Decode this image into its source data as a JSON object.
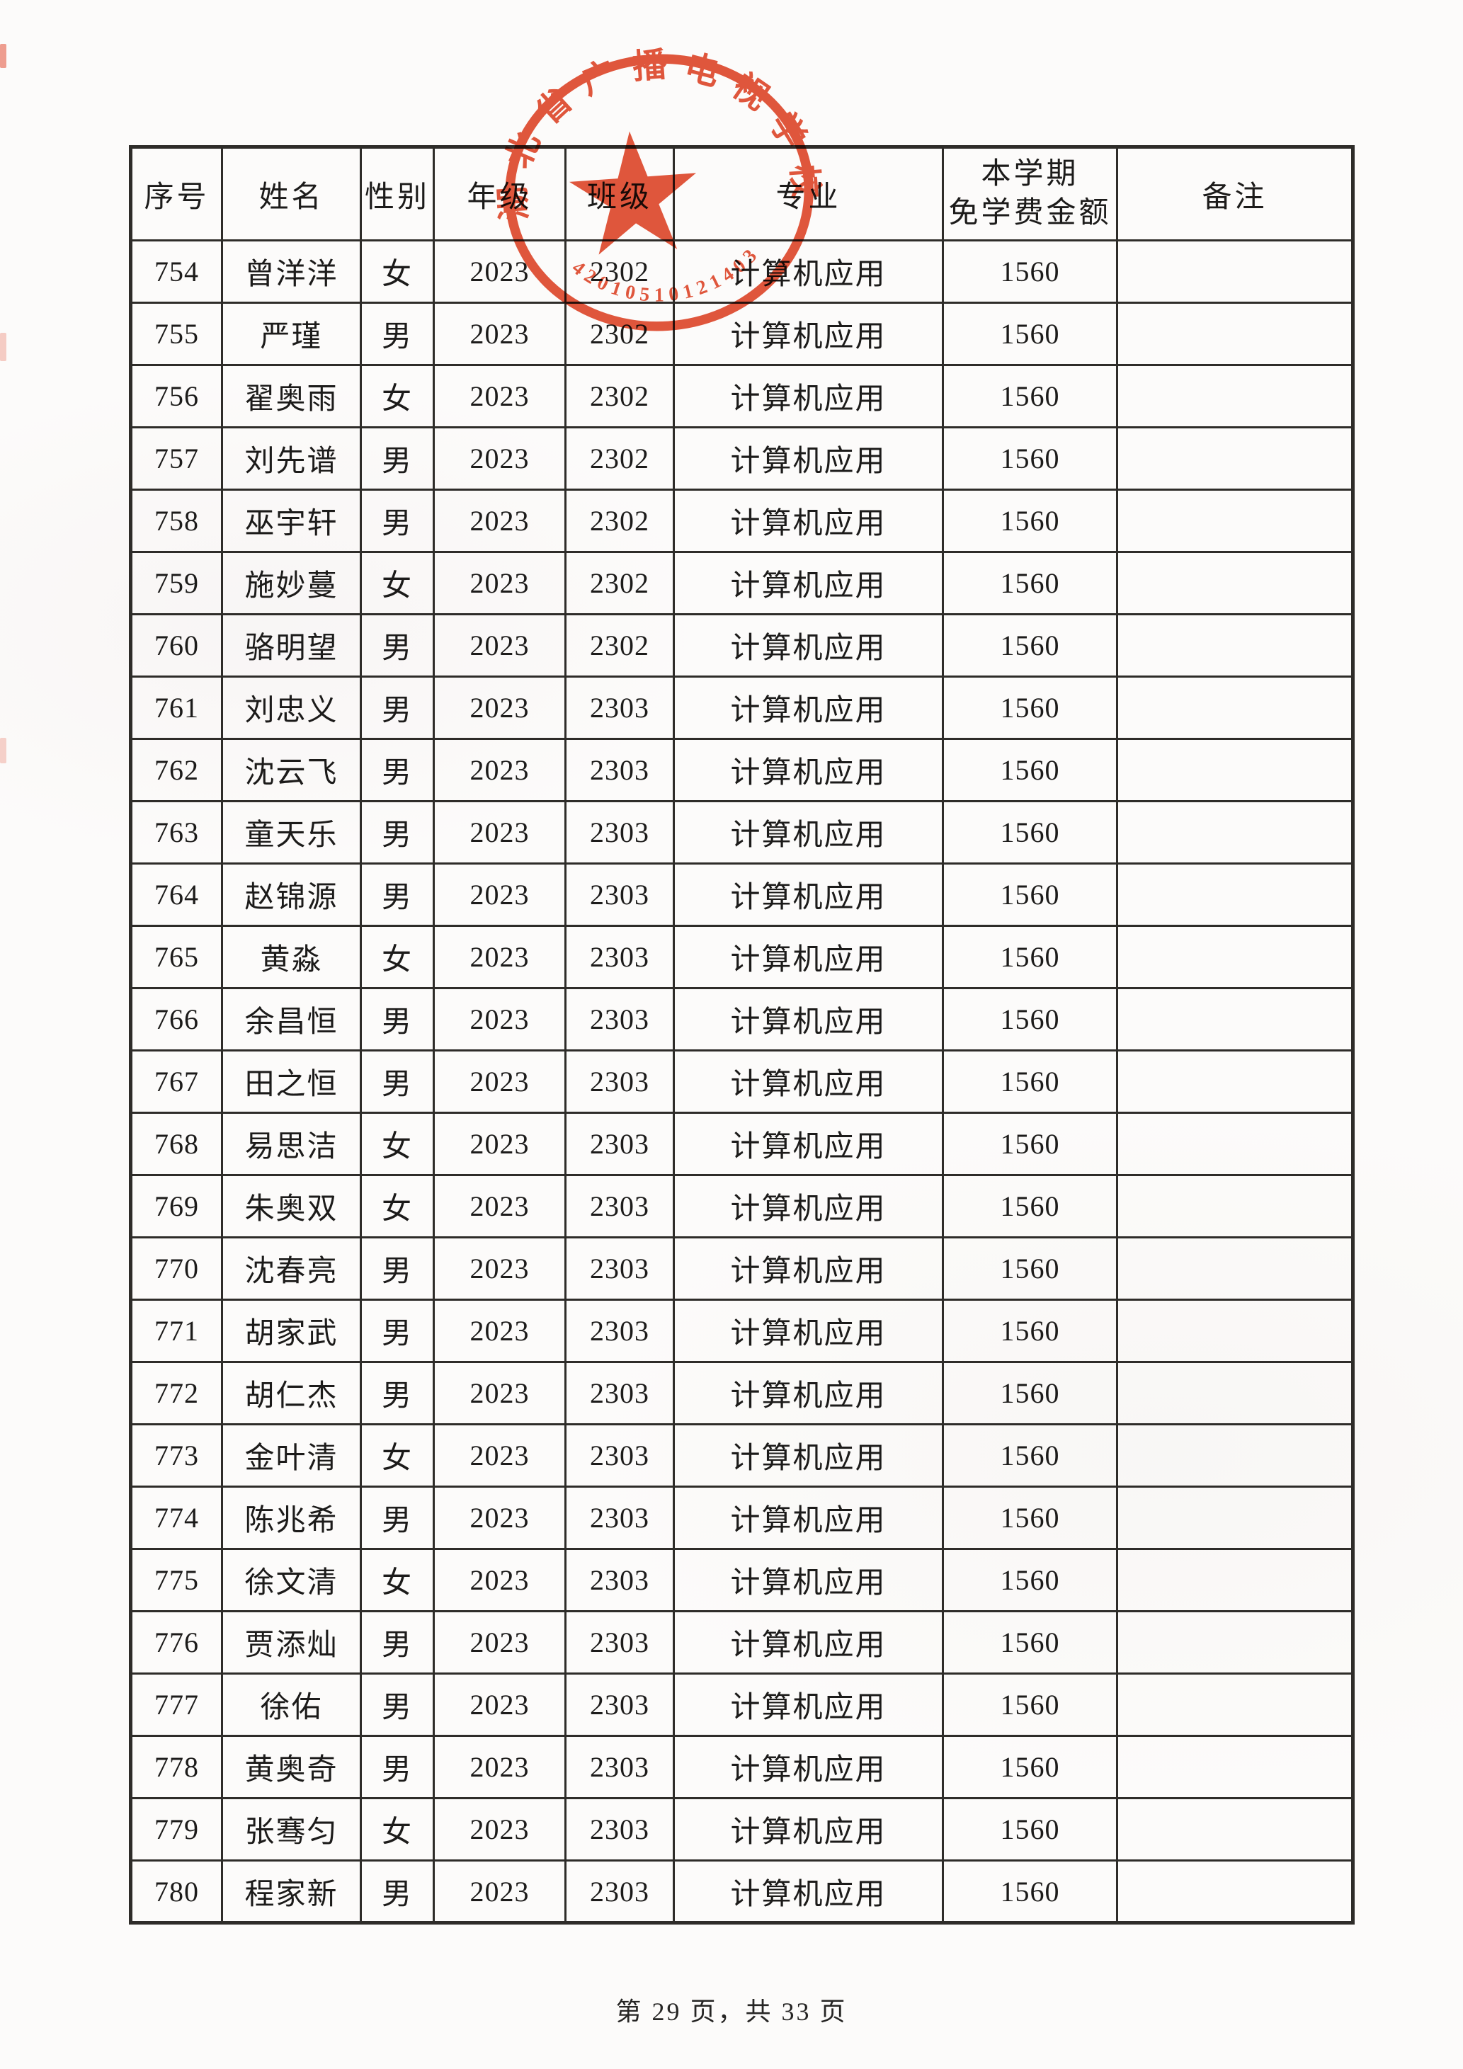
{
  "page": {
    "footer": "第 29 页，共 33 页"
  },
  "stamp": {
    "org": "湖北省广播电视学校",
    "code": "42010510121403",
    "color": "#e04a2e"
  },
  "table": {
    "headers": {
      "serial": "序号",
      "name": "姓名",
      "gender": "性别",
      "grade": "年级",
      "class": "班级",
      "major": "专业",
      "amount_line1": "本学期",
      "amount_line2": "免学费金额",
      "remark": "备注"
    },
    "rows": [
      {
        "serial": "754",
        "name": "曾洋洋",
        "gender": "女",
        "grade": "2023",
        "class": "2302",
        "major": "计算机应用",
        "amount": "1560",
        "remark": ""
      },
      {
        "serial": "755",
        "name": "严瑾",
        "gender": "男",
        "grade": "2023",
        "class": "2302",
        "major": "计算机应用",
        "amount": "1560",
        "remark": ""
      },
      {
        "serial": "756",
        "name": "翟奥雨",
        "gender": "女",
        "grade": "2023",
        "class": "2302",
        "major": "计算机应用",
        "amount": "1560",
        "remark": ""
      },
      {
        "serial": "757",
        "name": "刘先谱",
        "gender": "男",
        "grade": "2023",
        "class": "2302",
        "major": "计算机应用",
        "amount": "1560",
        "remark": ""
      },
      {
        "serial": "758",
        "name": "巫宇轩",
        "gender": "男",
        "grade": "2023",
        "class": "2302",
        "major": "计算机应用",
        "amount": "1560",
        "remark": ""
      },
      {
        "serial": "759",
        "name": "施妙蔓",
        "gender": "女",
        "grade": "2023",
        "class": "2302",
        "major": "计算机应用",
        "amount": "1560",
        "remark": ""
      },
      {
        "serial": "760",
        "name": "骆明望",
        "gender": "男",
        "grade": "2023",
        "class": "2302",
        "major": "计算机应用",
        "amount": "1560",
        "remark": ""
      },
      {
        "serial": "761",
        "name": "刘忠义",
        "gender": "男",
        "grade": "2023",
        "class": "2303",
        "major": "计算机应用",
        "amount": "1560",
        "remark": ""
      },
      {
        "serial": "762",
        "name": "沈云飞",
        "gender": "男",
        "grade": "2023",
        "class": "2303",
        "major": "计算机应用",
        "amount": "1560",
        "remark": ""
      },
      {
        "serial": "763",
        "name": "童天乐",
        "gender": "男",
        "grade": "2023",
        "class": "2303",
        "major": "计算机应用",
        "amount": "1560",
        "remark": ""
      },
      {
        "serial": "764",
        "name": "赵锦源",
        "gender": "男",
        "grade": "2023",
        "class": "2303",
        "major": "计算机应用",
        "amount": "1560",
        "remark": ""
      },
      {
        "serial": "765",
        "name": "黄淼",
        "gender": "女",
        "grade": "2023",
        "class": "2303",
        "major": "计算机应用",
        "amount": "1560",
        "remark": ""
      },
      {
        "serial": "766",
        "name": "余昌恒",
        "gender": "男",
        "grade": "2023",
        "class": "2303",
        "major": "计算机应用",
        "amount": "1560",
        "remark": ""
      },
      {
        "serial": "767",
        "name": "田之恒",
        "gender": "男",
        "grade": "2023",
        "class": "2303",
        "major": "计算机应用",
        "amount": "1560",
        "remark": ""
      },
      {
        "serial": "768",
        "name": "易思洁",
        "gender": "女",
        "grade": "2023",
        "class": "2303",
        "major": "计算机应用",
        "amount": "1560",
        "remark": ""
      },
      {
        "serial": "769",
        "name": "朱奥双",
        "gender": "女",
        "grade": "2023",
        "class": "2303",
        "major": "计算机应用",
        "amount": "1560",
        "remark": ""
      },
      {
        "serial": "770",
        "name": "沈春亮",
        "gender": "男",
        "grade": "2023",
        "class": "2303",
        "major": "计算机应用",
        "amount": "1560",
        "remark": ""
      },
      {
        "serial": "771",
        "name": "胡家武",
        "gender": "男",
        "grade": "2023",
        "class": "2303",
        "major": "计算机应用",
        "amount": "1560",
        "remark": ""
      },
      {
        "serial": "772",
        "name": "胡仁杰",
        "gender": "男",
        "grade": "2023",
        "class": "2303",
        "major": "计算机应用",
        "amount": "1560",
        "remark": ""
      },
      {
        "serial": "773",
        "name": "金叶清",
        "gender": "女",
        "grade": "2023",
        "class": "2303",
        "major": "计算机应用",
        "amount": "1560",
        "remark": ""
      },
      {
        "serial": "774",
        "name": "陈兆希",
        "gender": "男",
        "grade": "2023",
        "class": "2303",
        "major": "计算机应用",
        "amount": "1560",
        "remark": ""
      },
      {
        "serial": "775",
        "name": "徐文清",
        "gender": "女",
        "grade": "2023",
        "class": "2303",
        "major": "计算机应用",
        "amount": "1560",
        "remark": ""
      },
      {
        "serial": "776",
        "name": "贾添灿",
        "gender": "男",
        "grade": "2023",
        "class": "2303",
        "major": "计算机应用",
        "amount": "1560",
        "remark": ""
      },
      {
        "serial": "777",
        "name": "徐佑",
        "gender": "男",
        "grade": "2023",
        "class": "2303",
        "major": "计算机应用",
        "amount": "1560",
        "remark": ""
      },
      {
        "serial": "778",
        "name": "黄奥奇",
        "gender": "男",
        "grade": "2023",
        "class": "2303",
        "major": "计算机应用",
        "amount": "1560",
        "remark": ""
      },
      {
        "serial": "779",
        "name": "张骞匀",
        "gender": "女",
        "grade": "2023",
        "class": "2303",
        "major": "计算机应用",
        "amount": "1560",
        "remark": ""
      },
      {
        "serial": "780",
        "name": "程家新",
        "gender": "男",
        "grade": "2023",
        "class": "2303",
        "major": "计算机应用",
        "amount": "1560",
        "remark": ""
      }
    ]
  }
}
